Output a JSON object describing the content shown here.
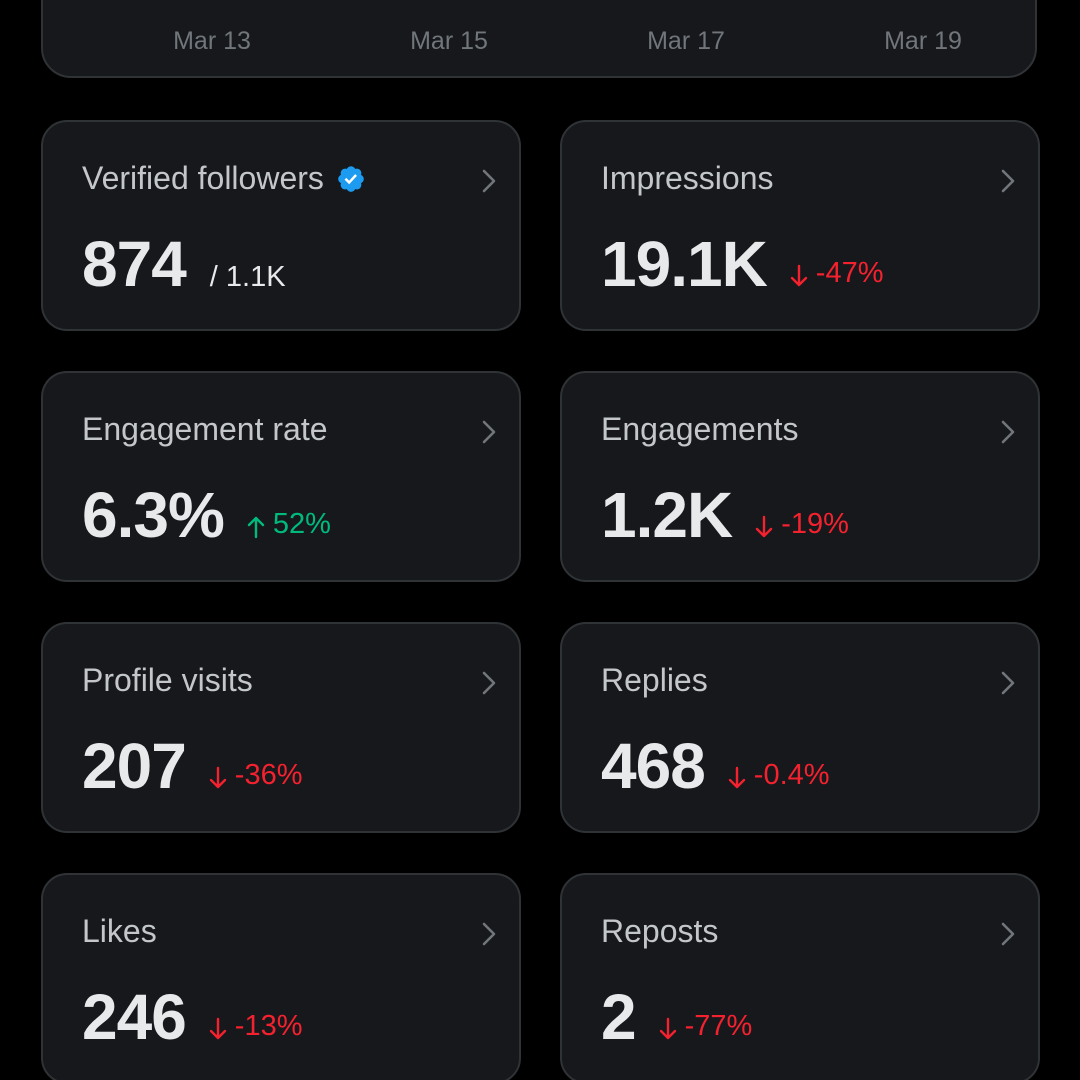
{
  "chart_axis": {
    "ticks": [
      "Mar 13",
      "Mar 15",
      "Mar 17",
      "Mar 19"
    ]
  },
  "colors": {
    "background": "#000000",
    "card": "#16181c",
    "border": "#2f3336",
    "negative": "#f4212e",
    "positive": "#00ba7c",
    "verified": "#1d9bf0"
  },
  "metrics": [
    {
      "title": "Verified followers",
      "value": "874",
      "sub": "/ 1.1K",
      "icon": "verified-badge-icon"
    },
    {
      "title": "Impressions",
      "value": "19.1K",
      "delta": "-47%",
      "direction": "down",
      "icon": "arrow-down-icon"
    },
    {
      "title": "Engagement rate",
      "value": "6.3%",
      "delta": "52%",
      "direction": "up",
      "icon": "arrow-up-icon"
    },
    {
      "title": "Engagements",
      "value": "1.2K",
      "delta": "-19%",
      "direction": "down",
      "icon": "arrow-down-icon"
    },
    {
      "title": "Profile visits",
      "value": "207",
      "delta": "-36%",
      "direction": "down",
      "icon": "arrow-down-icon"
    },
    {
      "title": "Replies",
      "value": "468",
      "delta": "-0.4%",
      "direction": "down",
      "icon": "arrow-down-icon"
    },
    {
      "title": "Likes",
      "value": "246",
      "delta": "-13%",
      "direction": "down",
      "icon": "arrow-down-icon"
    },
    {
      "title": "Reposts",
      "value": "2",
      "delta": "-77%",
      "direction": "down",
      "icon": "arrow-down-icon"
    }
  ]
}
